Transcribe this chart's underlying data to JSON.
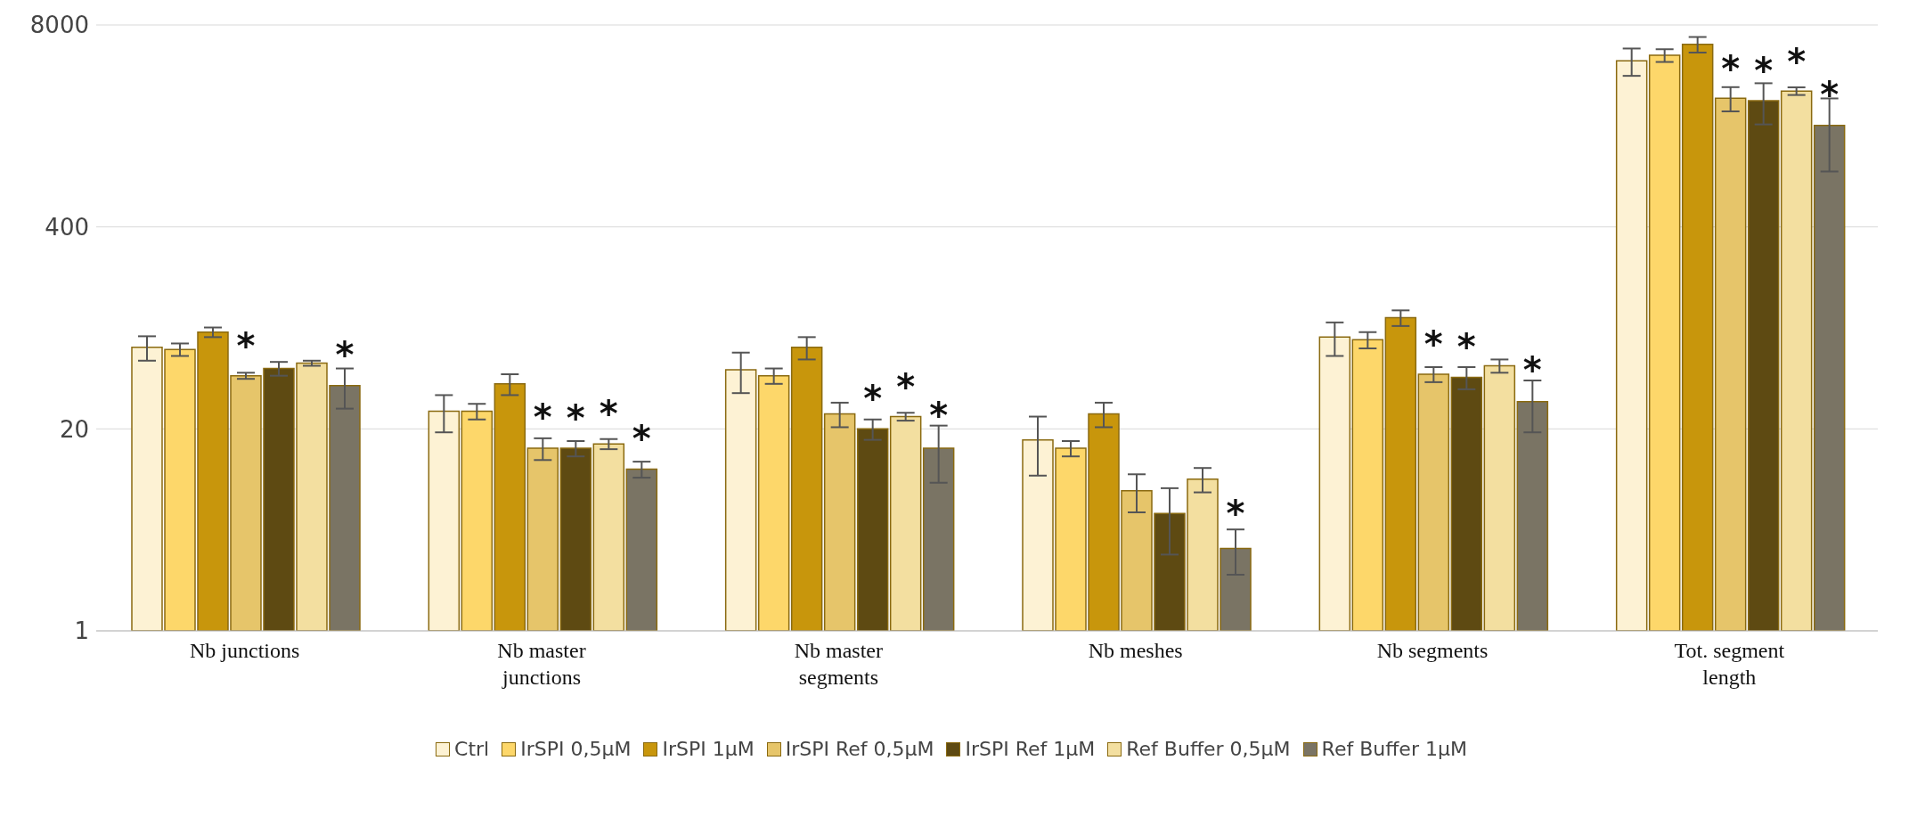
{
  "chart_data": {
    "type": "bar",
    "categories": [
      "Nb junctions",
      "Nb master junctions",
      "Nb master segments",
      "Nb meshes",
      "Nb segments",
      "Tot. segment length"
    ],
    "series": [
      {
        "name": "Ctrl",
        "color": "#fdf2d4",
        "values": [
          67,
          26,
          48,
          17,
          78,
          4700
        ],
        "errors": [
          12,
          7,
          14,
          7,
          19,
          940
        ]
      },
      {
        "name": "IrSPI 0,5µM",
        "color": "#fdd76a",
        "values": [
          65,
          26,
          44,
          15,
          75,
          5100
        ],
        "errors": [
          6,
          3,
          5,
          1.7,
          9,
          480
        ]
      },
      {
        "name": "IrSPI 1µM",
        "color": "#c8960c",
        "values": [
          84,
          39,
          67,
          25,
          104,
          6000
        ],
        "errors": [
          6,
          6,
          11,
          4.5,
          12,
          690
        ]
      },
      {
        "name": "IrSPI Ref 0,5µM",
        "color": "#e6c56a",
        "values": [
          44,
          15,
          25,
          8,
          45,
          2700
        ],
        "errors": [
          2,
          2.4,
          4.5,
          2.2,
          5,
          480
        ],
        "value_labels": [
          "*",
          "*",
          null,
          null,
          "*",
          "*"
        ]
      },
      {
        "name": "IrSPI Ref 1µM",
        "color": "#5e4a12",
        "values": [
          49,
          15,
          20,
          5.7,
          43,
          2600
        ],
        "errors": [
          5,
          1.7,
          3,
          2.6,
          7,
          770
        ],
        "value_labels": [
          null,
          "*",
          "*",
          null,
          "*",
          "*"
        ]
      },
      {
        "name": "Ref Buffer 0,5µM",
        "color": "#f3dfa0",
        "values": [
          53,
          16,
          24,
          9.5,
          51,
          3000
        ],
        "errors": [
          2,
          1.2,
          1.4,
          1.7,
          5,
          170
        ],
        "value_labels": [
          null,
          "*",
          "*",
          null,
          null,
          "*"
        ]
      },
      {
        "name": "Ref Buffer 1µM",
        "color": "#7a7464",
        "values": [
          38,
          11,
          15,
          3.4,
          30,
          1800
        ],
        "errors": [
          11,
          1.3,
          6,
          1.1,
          11,
          890
        ],
        "value_labels": [
          "*",
          "*",
          "*",
          "*",
          "*",
          "*"
        ]
      }
    ],
    "log": "y",
    "ylim": [
      1,
      8000
    ],
    "yticks": [
      1,
      20,
      400,
      8000
    ],
    "grid": "y",
    "legend": "bottom"
  }
}
